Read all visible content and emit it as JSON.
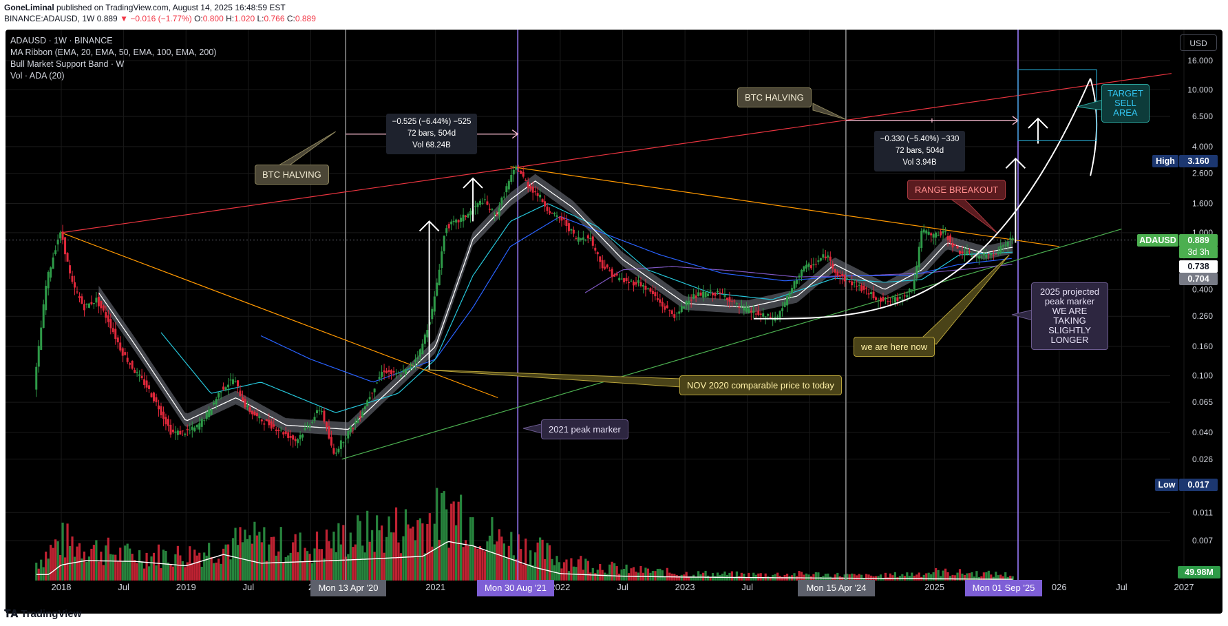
{
  "header": {
    "author": "GoneLiminal",
    "published": " published on TradingView.com, August 14, 2025 16:48:59 EST",
    "symbol": "BINANCE:ADAUSD, 1W",
    "price": "0.889",
    "change_arrow": "▼",
    "change": "−0.016 (−1.77%)",
    "o_label": "O:",
    "o": "0.800",
    "h_label": "H:",
    "h": "1.020",
    "l_label": "L:",
    "l": "0.766",
    "c_label": "C:",
    "c": "0.889"
  },
  "legend": [
    "ADAUSD · 1W · BINANCE",
    "MA Ribbon (EMA, 20, EMA, 50, EMA, 100, EMA, 200)",
    "Bull Market Support Band · W",
    "Vol · ADA (20)"
  ],
  "currency_button": "USD",
  "footer": {
    "brand": "TradingView"
  },
  "colors": {
    "up": "#089981",
    "down": "#f23645",
    "upbar": "#2e9b48",
    "downbar": "#e0283b",
    "grid": "#1a1a1a",
    "axis_text": "#d1d4dc",
    "red_line": "#e8343f",
    "orange_line": "#ff9800",
    "green_line": "#4caf50",
    "grey_vline": "#7a7a7a",
    "purple_vline": "#9c7dff",
    "ema20": "#ffffff",
    "ema50": "#26c6da",
    "ema100": "#2962ff",
    "ema200": "#7e57c2"
  },
  "chart_data": {
    "type": "candlestick",
    "timeframe": "1W",
    "y_scale": "log",
    "y_ticks": [
      "16.000",
      "10.000",
      "6.500",
      "4.000",
      "2.600",
      "1.600",
      "1.000",
      "0.400",
      "0.260",
      "0.160",
      "0.100",
      "0.065",
      "0.040",
      "0.026",
      "0.011",
      "0.007"
    ],
    "x_ticks": [
      {
        "label": "2018",
        "t": 2018.0
      },
      {
        "label": "Jul",
        "t": 2018.5
      },
      {
        "label": "2019",
        "t": 2019.0
      },
      {
        "label": "Jul",
        "t": 2019.5
      },
      {
        "label": "2",
        "t": 2020.0
      },
      {
        "label": "2021",
        "t": 2021.0
      },
      {
        "label": "2022",
        "t": 2022.0
      },
      {
        "label": "Jul",
        "t": 2022.5
      },
      {
        "label": "2023",
        "t": 2023.0
      },
      {
        "label": "Jul",
        "t": 2023.5
      },
      {
        "label": "20",
        "t": 2024.0
      },
      {
        "label": "2025",
        "t": 2025.0
      },
      {
        "label": "026",
        "t": 2026.0
      },
      {
        "label": "Jul",
        "t": 2026.5
      },
      {
        "label": "2027",
        "t": 2027.0
      }
    ],
    "price_path": [
      [
        2017.8,
        0.08
      ],
      [
        2017.9,
        0.45
      ],
      [
        2017.99,
        0.9
      ],
      [
        2018.02,
        1.0
      ],
      [
        2018.1,
        0.45
      ],
      [
        2018.2,
        0.3
      ],
      [
        2018.3,
        0.34
      ],
      [
        2018.4,
        0.24
      ],
      [
        2018.5,
        0.15
      ],
      [
        2018.6,
        0.11
      ],
      [
        2018.7,
        0.085
      ],
      [
        2018.8,
        0.06
      ],
      [
        2018.9,
        0.04
      ],
      [
        2019.0,
        0.04
      ],
      [
        2019.1,
        0.043
      ],
      [
        2019.2,
        0.055
      ],
      [
        2019.3,
        0.08
      ],
      [
        2019.4,
        0.095
      ],
      [
        2019.5,
        0.06
      ],
      [
        2019.6,
        0.05
      ],
      [
        2019.7,
        0.045
      ],
      [
        2019.8,
        0.04
      ],
      [
        2019.9,
        0.035
      ],
      [
        2020.0,
        0.045
      ],
      [
        2020.1,
        0.06
      ],
      [
        2020.2,
        0.028
      ],
      [
        2020.3,
        0.038
      ],
      [
        2020.4,
        0.05
      ],
      [
        2020.5,
        0.075
      ],
      [
        2020.6,
        0.11
      ],
      [
        2020.7,
        0.1
      ],
      [
        2020.8,
        0.11
      ],
      [
        2020.9,
        0.15
      ],
      [
        2021.0,
        0.3
      ],
      [
        2021.1,
        1.1
      ],
      [
        2021.2,
        1.2
      ],
      [
        2021.3,
        1.4
      ],
      [
        2021.4,
        1.7
      ],
      [
        2021.5,
        1.3
      ],
      [
        2021.6,
        2.2
      ],
      [
        2021.67,
        2.9
      ],
      [
        2021.75,
        2.2
      ],
      [
        2021.85,
        1.8
      ],
      [
        2021.95,
        1.35
      ],
      [
        2022.05,
        1.2
      ],
      [
        2022.15,
        0.9
      ],
      [
        2022.25,
        0.95
      ],
      [
        2022.35,
        0.6
      ],
      [
        2022.45,
        0.5
      ],
      [
        2022.55,
        0.45
      ],
      [
        2022.65,
        0.45
      ],
      [
        2022.75,
        0.38
      ],
      [
        2022.85,
        0.3
      ],
      [
        2022.95,
        0.26
      ],
      [
        2023.05,
        0.35
      ],
      [
        2023.15,
        0.37
      ],
      [
        2023.25,
        0.38
      ],
      [
        2023.35,
        0.36
      ],
      [
        2023.45,
        0.3
      ],
      [
        2023.55,
        0.28
      ],
      [
        2023.65,
        0.26
      ],
      [
        2023.75,
        0.25
      ],
      [
        2023.85,
        0.36
      ],
      [
        2023.95,
        0.55
      ],
      [
        2024.05,
        0.6
      ],
      [
        2024.15,
        0.7
      ],
      [
        2024.25,
        0.5
      ],
      [
        2024.35,
        0.45
      ],
      [
        2024.45,
        0.4
      ],
      [
        2024.55,
        0.35
      ],
      [
        2024.65,
        0.33
      ],
      [
        2024.75,
        0.35
      ],
      [
        2024.85,
        0.42
      ],
      [
        2024.92,
        1.05
      ],
      [
        2025.0,
        0.95
      ],
      [
        2025.1,
        1.0
      ],
      [
        2025.2,
        0.75
      ],
      [
        2025.3,
        0.7
      ],
      [
        2025.4,
        0.68
      ],
      [
        2025.5,
        0.73
      ],
      [
        2025.55,
        0.78
      ],
      [
        2025.62,
        0.889
      ]
    ],
    "volume_path": [
      [
        2017.8,
        0.25
      ],
      [
        2018.0,
        0.55
      ],
      [
        2018.5,
        0.35
      ],
      [
        2019.0,
        0.35
      ],
      [
        2019.5,
        0.55
      ],
      [
        2020.0,
        0.45
      ],
      [
        2020.3,
        0.6
      ],
      [
        2020.8,
        0.75
      ],
      [
        2021.0,
        0.85
      ],
      [
        2021.2,
        1.0
      ],
      [
        2021.5,
        0.55
      ],
      [
        2021.67,
        0.5
      ],
      [
        2022.0,
        0.3
      ],
      [
        2022.5,
        0.15
      ],
      [
        2023.0,
        0.1
      ],
      [
        2023.5,
        0.08
      ],
      [
        2024.0,
        0.09
      ],
      [
        2024.5,
        0.06
      ],
      [
        2024.9,
        0.1
      ],
      [
        2025.0,
        0.12
      ],
      [
        2025.6,
        0.08
      ]
    ],
    "vol_ma_path": [
      [
        2017.9,
        0.07
      ],
      [
        2018.0,
        0.18
      ],
      [
        2018.2,
        0.23
      ],
      [
        2018.6,
        0.22
      ],
      [
        2019.0,
        0.17
      ],
      [
        2019.3,
        0.3
      ],
      [
        2019.6,
        0.2
      ],
      [
        2020.0,
        0.22
      ],
      [
        2020.5,
        0.25
      ],
      [
        2020.9,
        0.28
      ],
      [
        2021.1,
        0.45
      ],
      [
        2021.3,
        0.4
      ],
      [
        2021.6,
        0.25
      ],
      [
        2021.8,
        0.15
      ],
      [
        2022.0,
        0.08
      ],
      [
        2022.5,
        0.05
      ],
      [
        2023.0,
        0.04
      ],
      [
        2024.0,
        0.03
      ],
      [
        2025.0,
        0.02
      ],
      [
        2025.6,
        0.015
      ]
    ],
    "ema20_path": [
      [
        2018.3,
        0.38
      ],
      [
        2018.6,
        0.16
      ],
      [
        2019.0,
        0.048
      ],
      [
        2019.4,
        0.07
      ],
      [
        2019.8,
        0.045
      ],
      [
        2020.3,
        0.042
      ],
      [
        2020.7,
        0.09
      ],
      [
        2021.0,
        0.16
      ],
      [
        2021.3,
        0.9
      ],
      [
        2021.6,
        1.7
      ],
      [
        2021.8,
        2.3
      ],
      [
        2022.1,
        1.5
      ],
      [
        2022.5,
        0.65
      ],
      [
        2023.0,
        0.32
      ],
      [
        2023.5,
        0.3
      ],
      [
        2023.9,
        0.36
      ],
      [
        2024.2,
        0.6
      ],
      [
        2024.6,
        0.4
      ],
      [
        2024.9,
        0.55
      ],
      [
        2025.1,
        0.85
      ],
      [
        2025.4,
        0.72
      ],
      [
        2025.62,
        0.79
      ]
    ],
    "ema50_path": [
      [
        2018.8,
        0.2
      ],
      [
        2019.2,
        0.075
      ],
      [
        2019.6,
        0.09
      ],
      [
        2020.2,
        0.055
      ],
      [
        2020.7,
        0.075
      ],
      [
        2021.0,
        0.13
      ],
      [
        2021.3,
        0.5
      ],
      [
        2021.6,
        1.2
      ],
      [
        2021.9,
        1.6
      ],
      [
        2022.3,
        1.1
      ],
      [
        2022.7,
        0.55
      ],
      [
        2023.2,
        0.38
      ],
      [
        2023.7,
        0.34
      ],
      [
        2024.2,
        0.48
      ],
      [
        2024.6,
        0.45
      ],
      [
        2024.9,
        0.47
      ],
      [
        2025.2,
        0.7
      ],
      [
        2025.62,
        0.73
      ]
    ],
    "ema100_path": [
      [
        2019.6,
        0.19
      ],
      [
        2020.0,
        0.13
      ],
      [
        2020.5,
        0.09
      ],
      [
        2021.0,
        0.13
      ],
      [
        2021.3,
        0.3
      ],
      [
        2021.6,
        0.8
      ],
      [
        2022.0,
        1.3
      ],
      [
        2022.4,
        0.95
      ],
      [
        2022.8,
        0.7
      ],
      [
        2023.3,
        0.52
      ],
      [
        2023.8,
        0.46
      ],
      [
        2024.3,
        0.5
      ],
      [
        2024.8,
        0.5
      ],
      [
        2025.2,
        0.6
      ],
      [
        2025.62,
        0.66
      ]
    ],
    "ema200_path": [
      [
        2022.2,
        0.38
      ],
      [
        2022.5,
        0.55
      ],
      [
        2022.9,
        0.58
      ],
      [
        2023.4,
        0.54
      ],
      [
        2023.9,
        0.49
      ],
      [
        2024.4,
        0.5
      ],
      [
        2024.9,
        0.52
      ],
      [
        2025.3,
        0.56
      ],
      [
        2025.62,
        0.6
      ]
    ],
    "trendlines": [
      {
        "name": "red-resistance",
        "color": "#e8343f",
        "from": [
          2018.0,
          1.0
        ],
        "to": [
          2026.9,
          13.0
        ]
      },
      {
        "name": "orange-downtrend-1",
        "color": "#ff9800",
        "from": [
          2018.0,
          1.0
        ],
        "to": [
          2021.5,
          0.07
        ]
      },
      {
        "name": "orange-downtrend-2",
        "color": "#ff9800",
        "from": [
          2021.6,
          2.9
        ],
        "to": [
          2026.0,
          0.8
        ]
      },
      {
        "name": "green-support",
        "color": "#4caf50",
        "from": [
          2020.25,
          0.026
        ],
        "to": [
          2026.5,
          1.06
        ]
      }
    ],
    "vertical_lines": [
      {
        "t": 2020.28,
        "color": "#8a8a8a",
        "label": "Mon 13 Apr '20"
      },
      {
        "t": 2021.66,
        "color": "#9c7dff",
        "label": "Mon 30 Aug '21"
      },
      {
        "t": 2024.29,
        "color": "#8a8a8a",
        "label": "Mon 15 Apr '24"
      },
      {
        "t": 2025.67,
        "color": "#9c7dff",
        "label": "Mon 01 Sep '25"
      }
    ],
    "measurements": [
      {
        "line1": "−0.525 (−6.44%) −525",
        "line2": "72 bars, 504d",
        "line3": "Vol 68.24B"
      },
      {
        "line1": "−0.330 (−5.40%) −330",
        "line2": "72 bars, 504d",
        "line3": "Vol 3.94B"
      }
    ],
    "annotations": {
      "btc_halving_1": "BTC HALVING",
      "btc_halving_2": "BTC HALVING",
      "nov_2020": "NOV 2020 comparable price to today",
      "peak_2021": "2021 peak marker",
      "range_breakout": "RANGE BREAKOUT",
      "here_now": "we are here now",
      "target": [
        "TARGET",
        "SELL",
        "AREA"
      ],
      "peak_2025": [
        "2025 projected",
        "peak marker",
        "WE ARE",
        "TAKING",
        "SLIGHTLY",
        "LONGER"
      ]
    },
    "price_labels": {
      "high_label": "High",
      "high": "3.160",
      "symbol": "ADAUSD",
      "last": "0.889",
      "countdown": "3d 3h",
      "ema_a": "0.738",
      "ema_b": "0.704",
      "low_label": "Low",
      "low": "0.017",
      "volume": "49.98M"
    }
  }
}
